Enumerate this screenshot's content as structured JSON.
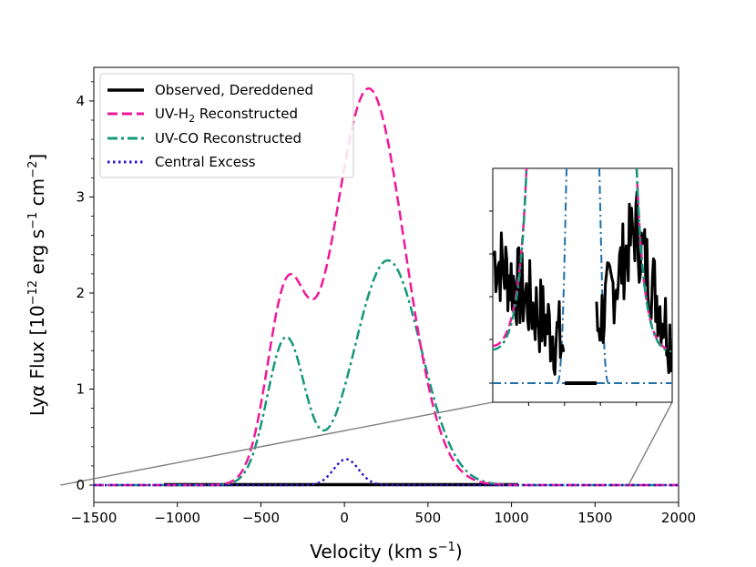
{
  "chart_data": {
    "type": "line",
    "title": "",
    "xlabel": "Velocity (km s",
    "xlabel_sup": "−1",
    "xlabel_end": ")",
    "ylabel": "Lyα Flux [10",
    "ylabel_sup1": "−12",
    "ylabel_mid1": " erg s",
    "ylabel_sup2": "−1",
    "ylabel_mid2": " cm",
    "ylabel_sup3": "−2",
    "ylabel_end": "]",
    "xlim": [
      -1500,
      2000
    ],
    "ylim": [
      -0.18,
      4.35
    ],
    "xticks": [
      -1500,
      -1000,
      -500,
      0,
      500,
      1000,
      1500,
      2000
    ],
    "xtick_labels": [
      "−1500",
      "−1000",
      "−500",
      "0",
      "500",
      "1000",
      "1500",
      "2000"
    ],
    "yticks": [
      0,
      1,
      2,
      3,
      4
    ],
    "ytick_labels": [
      "0",
      "1",
      "2",
      "3",
      "4"
    ],
    "legend": {
      "position": "top-left",
      "entries": [
        {
          "key": "observed",
          "label": "Observed, Dereddened",
          "color": "#000000",
          "style": "solid"
        },
        {
          "key": "h2",
          "label": "UV-H",
          "label_sub": "2",
          "label_end": " Reconstructed",
          "color": "#f0179a",
          "style": "dashed"
        },
        {
          "key": "co",
          "label": "UV-CO Reconstructed",
          "color": "#14987a",
          "style": "dashdot"
        },
        {
          "key": "excess",
          "label": "Central Excess",
          "color": "#2a14c8",
          "style": "dotted"
        }
      ]
    },
    "series": [
      {
        "name": "UV-H2 Reconstructed",
        "components": [
          {
            "amp": 1.86,
            "mu": -350,
            "sigma": 115
          },
          {
            "amp": 4.13,
            "mu": 145,
            "sigma": 215
          }
        ]
      },
      {
        "name": "UV-CO Reconstructed",
        "components": [
          {
            "amp": 1.52,
            "mu": -350,
            "sigma": 112
          },
          {
            "amp": 2.34,
            "mu": 260,
            "sigma": 200
          }
        ]
      },
      {
        "name": "Central Excess",
        "components": [
          {
            "amp": 0.27,
            "mu": 10,
            "sigma": 75
          }
        ]
      },
      {
        "name": "Observed, Dereddened",
        "components": []
      }
    ],
    "inset": {
      "xlim": [
        -1500,
        2000
      ],
      "ylim": [
        -0.01,
        0.07
      ],
      "connector_from_main": [
        -1700,
        1700
      ]
    }
  }
}
